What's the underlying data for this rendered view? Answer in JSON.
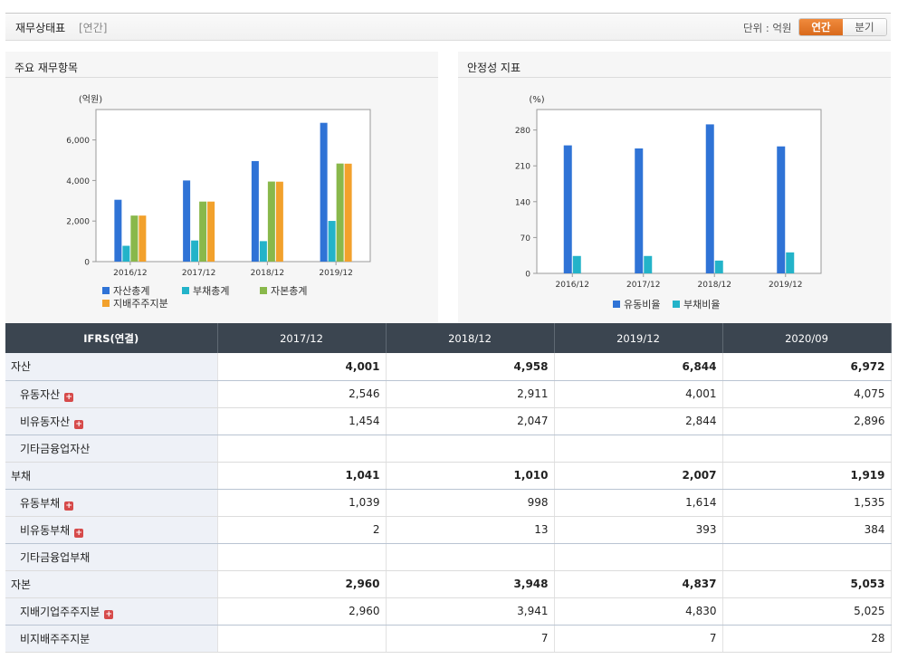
{
  "header": {
    "title": "재무상태표",
    "subtitle": "[연간]",
    "unit": "단위 : 억원",
    "toggle_on": "연간",
    "toggle_off": "분기"
  },
  "panels": {
    "left_title": "주요 재무항목",
    "right_title": "안정성 지표"
  },
  "chart_data": [
    {
      "type": "bar",
      "ylabel": "(억원)",
      "categories": [
        "2016/12",
        "2017/12",
        "2018/12",
        "2019/12"
      ],
      "ylim": [
        0,
        7500
      ],
      "yticks": [
        0,
        2000,
        4000,
        6000
      ],
      "ytick_labels": [
        "0",
        "2,000",
        "4,000",
        "6,000"
      ],
      "series": [
        {
          "name": "자산총계",
          "values": [
            3050,
            4001,
            4958,
            6844
          ],
          "color": "#2f73d6"
        },
        {
          "name": "부채총계",
          "values": [
            780,
            1041,
            1010,
            2007
          ],
          "color": "#23b3c9"
        },
        {
          "name": "자본총계",
          "values": [
            2270,
            2960,
            3948,
            4837
          ],
          "color": "#89b84b"
        },
        {
          "name": "지배주주지분",
          "values": [
            2270,
            2960,
            3941,
            4830
          ],
          "color": "#f2a12c"
        }
      ],
      "legend": "bottom-left"
    },
    {
      "type": "bar",
      "ylabel": "(%)",
      "categories": [
        "2016/12",
        "2017/12",
        "2018/12",
        "2019/12"
      ],
      "ylim": [
        0,
        320
      ],
      "yticks": [
        0,
        70,
        140,
        210,
        280
      ],
      "ytick_labels": [
        "0",
        "70",
        "140",
        "210",
        "280"
      ],
      "series": [
        {
          "name": "유동비율",
          "values": [
            250,
            244,
            291,
            248
          ],
          "color": "#2f73d6"
        },
        {
          "name": "부채비율",
          "values": [
            34,
            34,
            25,
            41
          ],
          "color": "#23b3c9"
        }
      ],
      "legend": "bottom-center"
    }
  ],
  "table": {
    "header": [
      "IFRS(연결)",
      "2017/12",
      "2018/12",
      "2019/12",
      "2020/09"
    ],
    "rows": [
      {
        "label": "자산",
        "level": 0,
        "plus": false,
        "values": [
          "4,001",
          "4,958",
          "6,844",
          "6,972"
        ]
      },
      {
        "label": "유동자산",
        "level": 1,
        "plus": true,
        "values": [
          "2,546",
          "2,911",
          "4,001",
          "4,075"
        ]
      },
      {
        "label": "비유동자산",
        "level": 1,
        "plus": true,
        "values": [
          "1,454",
          "2,047",
          "2,844",
          "2,896"
        ]
      },
      {
        "label": "기타금융업자산",
        "level": 1,
        "plus": false,
        "values": [
          "",
          "",
          "",
          ""
        ]
      },
      {
        "label": "부채",
        "level": 0,
        "plus": false,
        "values": [
          "1,041",
          "1,010",
          "2,007",
          "1,919"
        ]
      },
      {
        "label": "유동부채",
        "level": 1,
        "plus": true,
        "values": [
          "1,039",
          "998",
          "1,614",
          "1,535"
        ]
      },
      {
        "label": "비유동부채",
        "level": 1,
        "plus": true,
        "values": [
          "2",
          "13",
          "393",
          "384"
        ]
      },
      {
        "label": "기타금융업부채",
        "level": 1,
        "plus": false,
        "values": [
          "",
          "",
          "",
          ""
        ]
      },
      {
        "label": "자본",
        "level": 0,
        "plus": false,
        "values": [
          "2,960",
          "3,948",
          "4,837",
          "5,053"
        ]
      },
      {
        "label": "지배기업주주지분",
        "level": 1,
        "plus": true,
        "values": [
          "2,960",
          "3,941",
          "4,830",
          "5,025"
        ]
      },
      {
        "label": "비지배주주지분",
        "level": 1,
        "plus": false,
        "values": [
          "",
          "7",
          "7",
          "28"
        ]
      }
    ]
  }
}
